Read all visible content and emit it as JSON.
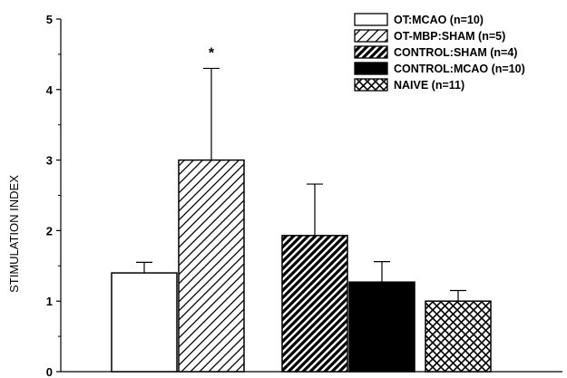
{
  "chart_data": {
    "type": "bar",
    "ylabel": "STIMULATION INDEX",
    "ylim": [
      0,
      5
    ],
    "yticks": [
      "0",
      "1",
      "2",
      "3",
      "4",
      "5"
    ],
    "grid": false,
    "legend_position": "top-right",
    "series": [
      {
        "name": "OT:MCAO (n=10)",
        "value": 1.4,
        "error": 0.15,
        "pattern": "open",
        "significance": ""
      },
      {
        "name": "OT-MBP:SHAM (n=5)",
        "value": 3.0,
        "error": 1.3,
        "pattern": "hatch-light",
        "significance": "*"
      },
      {
        "name": "CONTROL:SHAM (n=4)",
        "value": 1.93,
        "error": 0.73,
        "pattern": "hatch-dark",
        "significance": ""
      },
      {
        "name": "CONTROL:MCAO (n=10)",
        "value": 1.27,
        "error": 0.29,
        "pattern": "solid",
        "significance": ""
      },
      {
        "name": "NAIVE (n=11)",
        "value": 1.0,
        "error": 0.15,
        "pattern": "crosshatch",
        "significance": ""
      }
    ]
  }
}
